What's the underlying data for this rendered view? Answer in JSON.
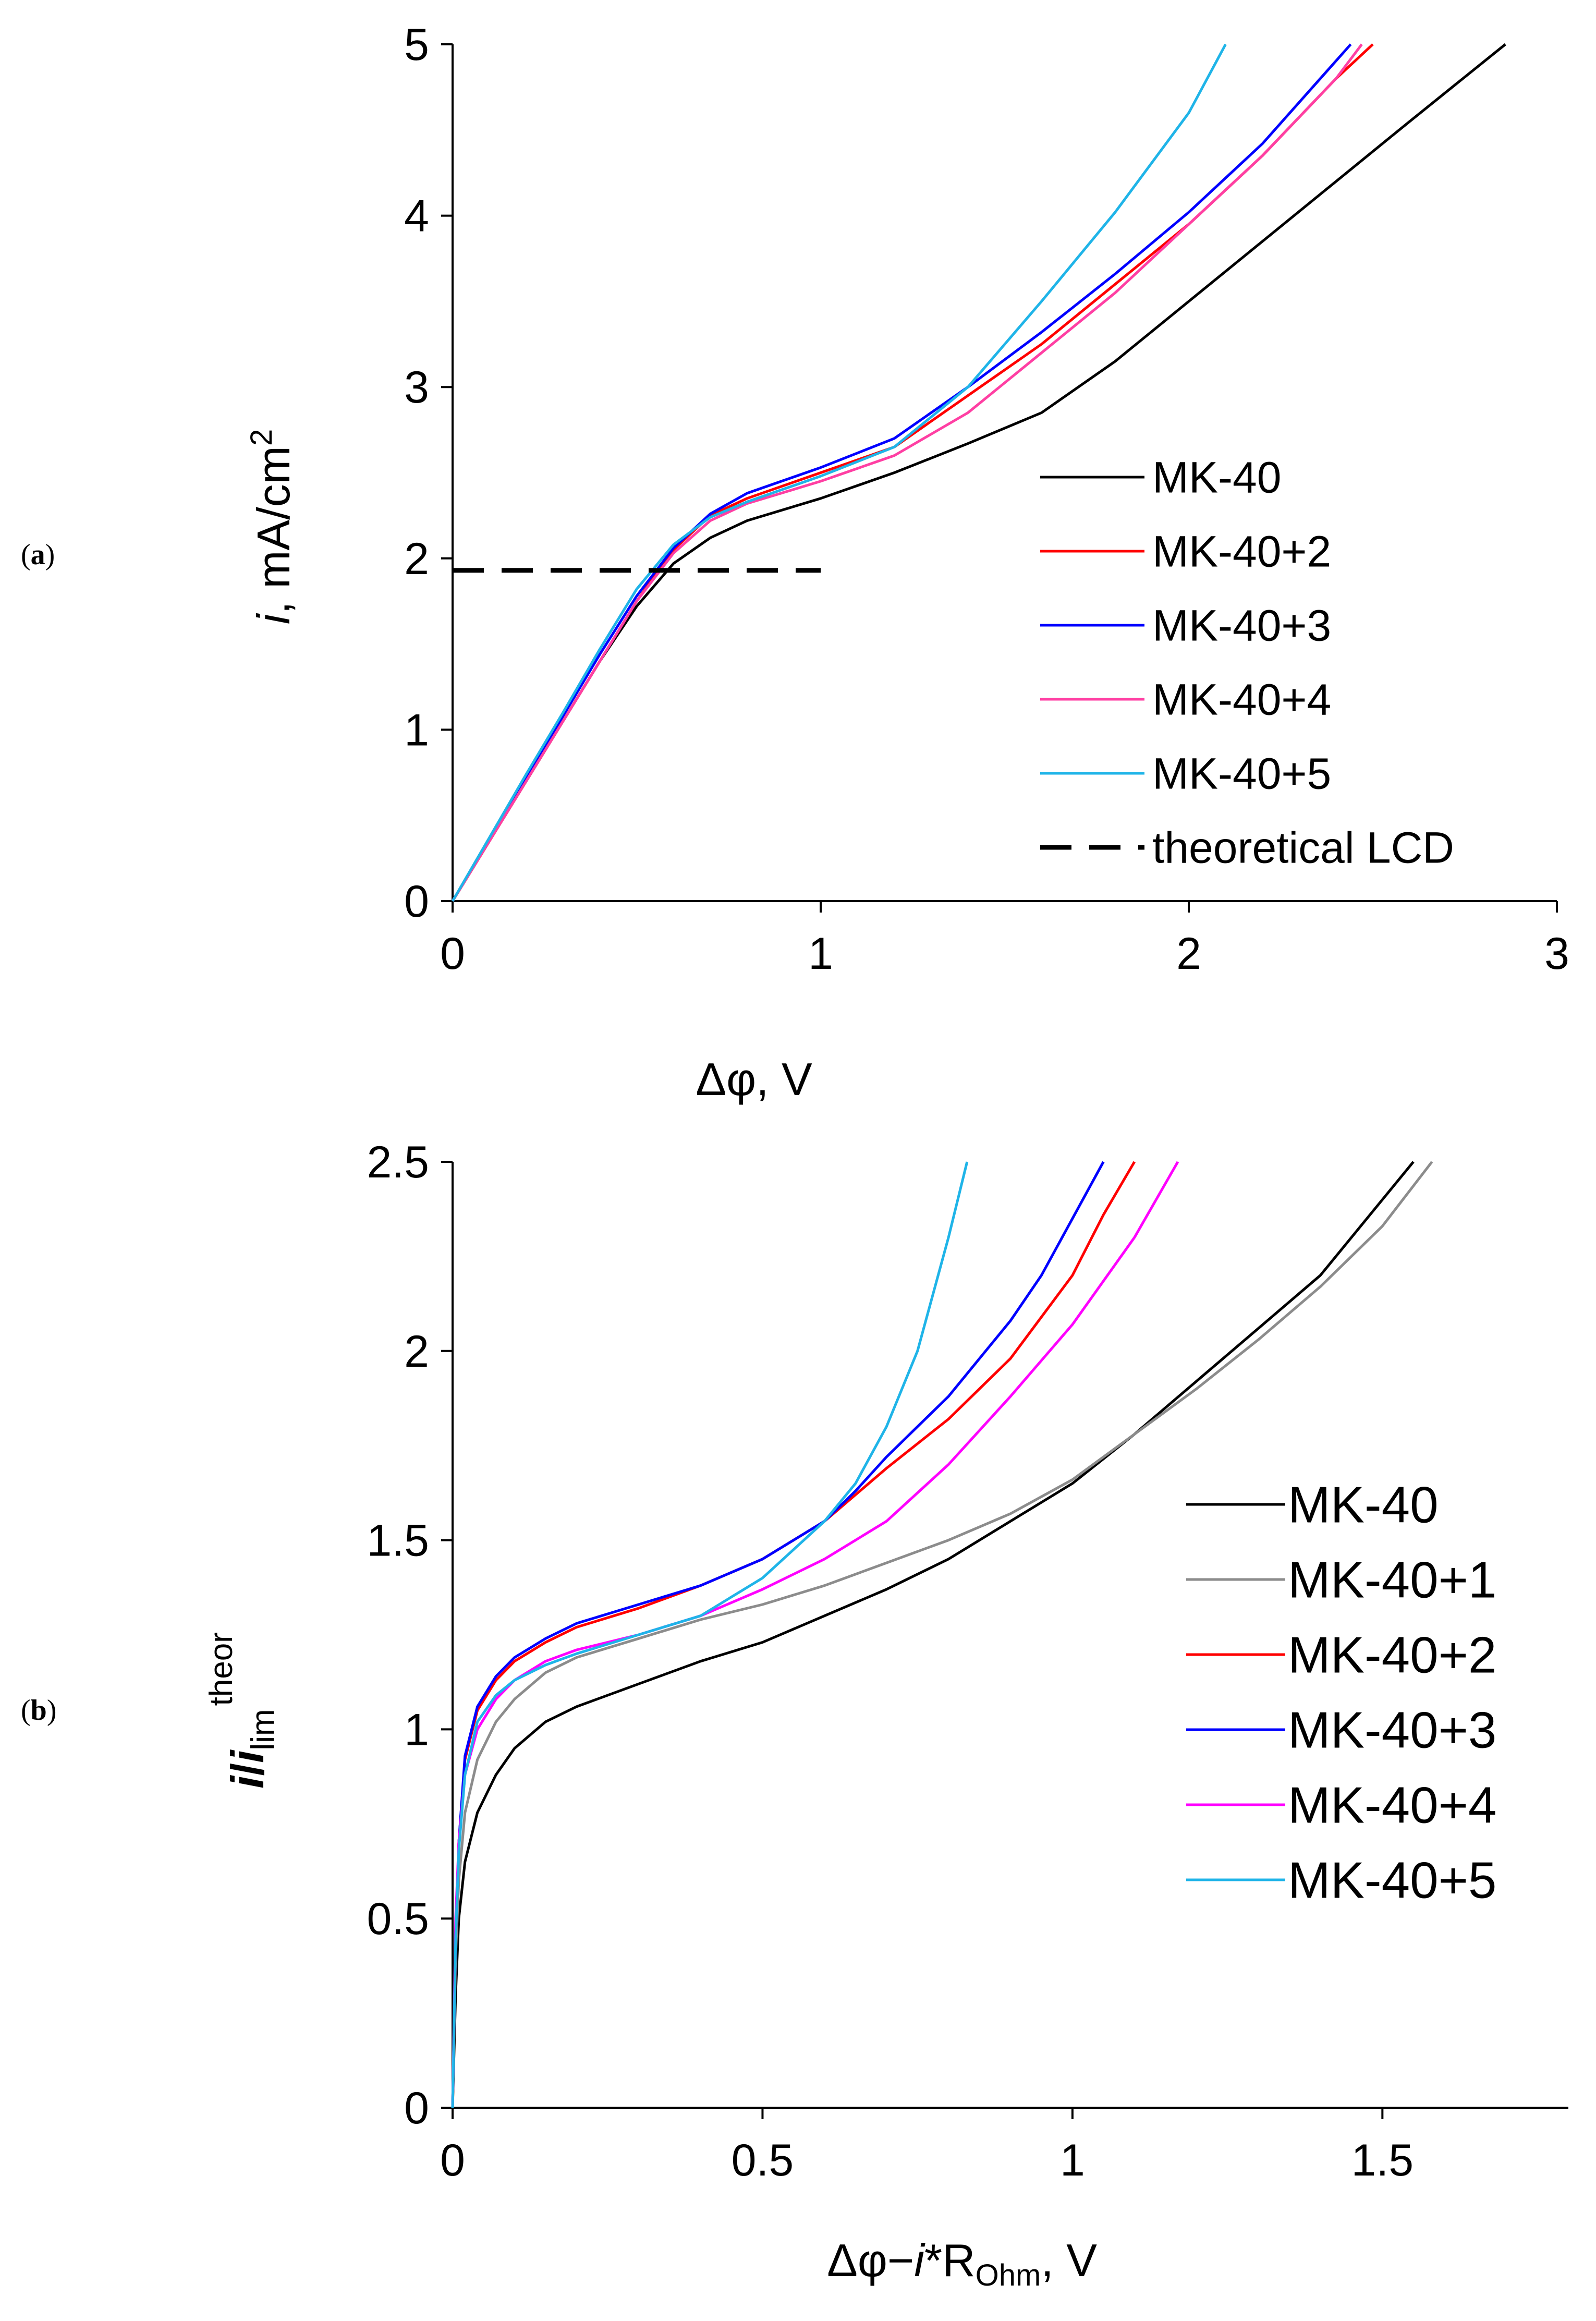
{
  "panel_labels": [
    {
      "open": "(",
      "letter": "a",
      "close": ")"
    },
    {
      "open": "(",
      "letter": "b",
      "close": ")"
    }
  ],
  "chart_data": [
    {
      "type": "line",
      "panel": "a",
      "title": "",
      "xlabel": "Δφ, V",
      "ylabel": {
        "italic": "i",
        "rest": ", mA/cm",
        "sup": "2"
      },
      "xlim": [
        0,
        3
      ],
      "ylim": [
        0,
        5
      ],
      "xticks": [
        0,
        1,
        2,
        3
      ],
      "xtick_labels": [
        "0",
        "1",
        "2",
        "3"
      ],
      "yticks": [
        0,
        1,
        2,
        3,
        4,
        5
      ],
      "ytick_labels": [
        "0",
        "1",
        "2",
        "3",
        "4",
        "5"
      ],
      "grid": false,
      "legend_position": "lower-right",
      "series": [
        {
          "name": "MK-40",
          "color": "#000000",
          "dash": "solid",
          "x": [
            0,
            0.1,
            0.2,
            0.3,
            0.4,
            0.5,
            0.6,
            0.7,
            0.8,
            1.0,
            1.2,
            1.4,
            1.6,
            1.8,
            2.0,
            2.2,
            2.4,
            2.6,
            2.86
          ],
          "y": [
            0,
            0.35,
            0.7,
            1.05,
            1.4,
            1.72,
            1.97,
            2.12,
            2.22,
            2.35,
            2.5,
            2.67,
            2.85,
            3.15,
            3.5,
            3.85,
            4.2,
            4.55,
            5.0
          ]
        },
        {
          "name": "MK-40+2",
          "color": "#ff0000",
          "dash": "solid",
          "x": [
            0,
            0.1,
            0.2,
            0.3,
            0.4,
            0.5,
            0.6,
            0.7,
            0.8,
            1.0,
            1.2,
            1.4,
            1.6,
            1.8,
            2.0,
            2.2,
            2.4,
            2.5
          ],
          "y": [
            0,
            0.35,
            0.7,
            1.05,
            1.4,
            1.75,
            2.05,
            2.25,
            2.35,
            2.5,
            2.65,
            2.95,
            3.25,
            3.6,
            3.95,
            4.35,
            4.8,
            5.0
          ]
        },
        {
          "name": "MK-40+3",
          "color": "#0000ff",
          "dash": "solid",
          "x": [
            0,
            0.1,
            0.2,
            0.3,
            0.4,
            0.5,
            0.6,
            0.7,
            0.8,
            1.0,
            1.2,
            1.4,
            1.6,
            1.8,
            2.0,
            2.2,
            2.44
          ],
          "y": [
            0,
            0.36,
            0.72,
            1.08,
            1.44,
            1.78,
            2.06,
            2.26,
            2.38,
            2.53,
            2.7,
            3.0,
            3.32,
            3.66,
            4.02,
            4.42,
            5.0
          ]
        },
        {
          "name": "MK-40+4",
          "color": "#ff3fa3",
          "dash": "solid",
          "x": [
            0,
            0.1,
            0.2,
            0.3,
            0.4,
            0.5,
            0.6,
            0.7,
            0.8,
            1.0,
            1.2,
            1.4,
            1.6,
            1.8,
            2.0,
            2.2,
            2.4,
            2.47
          ],
          "y": [
            0,
            0.35,
            0.7,
            1.05,
            1.4,
            1.75,
            2.03,
            2.22,
            2.32,
            2.45,
            2.6,
            2.85,
            3.2,
            3.55,
            3.95,
            4.35,
            4.8,
            5.0
          ]
        },
        {
          "name": "MK-40+5",
          "color": "#1fb4e8",
          "dash": "solid",
          "x": [
            0,
            0.1,
            0.2,
            0.3,
            0.4,
            0.5,
            0.6,
            0.7,
            0.8,
            1.0,
            1.2,
            1.4,
            1.6,
            1.8,
            2.0,
            2.1
          ],
          "y": [
            0,
            0.37,
            0.74,
            1.1,
            1.47,
            1.82,
            2.08,
            2.24,
            2.33,
            2.48,
            2.65,
            3.0,
            3.5,
            4.02,
            4.6,
            5.0
          ]
        },
        {
          "name": "theoretical LCD",
          "color": "#000000",
          "dash": "dashed",
          "x": [
            0,
            1.0
          ],
          "y": [
            1.93,
            1.93
          ]
        }
      ]
    },
    {
      "type": "line",
      "panel": "b",
      "title": "",
      "xlabel": {
        "pre": "Δφ−",
        "italic": "i",
        "mid": "*R",
        "sub": "Ohm",
        "post": ",  V"
      },
      "ylabel": {
        "italic1": "i",
        "slash": "/",
        "italic2": "i",
        "sub": "lim",
        "sup": "theor"
      },
      "xlim": [
        0,
        1.8
      ],
      "ylim": [
        0,
        2.5
      ],
      "xticks": [
        0,
        0.5,
        1,
        1.5
      ],
      "xtick_labels": [
        "0",
        "0.5",
        "1",
        "1.5"
      ],
      "yticks": [
        0,
        0.5,
        1,
        1.5,
        2,
        2.5
      ],
      "ytick_labels": [
        "0",
        "0.5",
        "1",
        "1.5",
        "2",
        "2.5"
      ],
      "grid": false,
      "legend_position": "lower-right",
      "series": [
        {
          "name": "MK-40",
          "color": "#000000",
          "dash": "solid",
          "x": [
            0,
            0.005,
            0.01,
            0.02,
            0.04,
            0.07,
            0.1,
            0.15,
            0.2,
            0.3,
            0.4,
            0.5,
            0.6,
            0.7,
            0.8,
            0.9,
            1.0,
            1.1,
            1.2,
            1.3,
            1.4,
            1.5,
            1.55
          ],
          "y": [
            0,
            0.3,
            0.5,
            0.65,
            0.78,
            0.88,
            0.95,
            1.02,
            1.06,
            1.12,
            1.18,
            1.23,
            1.3,
            1.37,
            1.45,
            1.55,
            1.65,
            1.78,
            1.92,
            2.06,
            2.2,
            2.4,
            2.5
          ]
        },
        {
          "name": "MK-40+1",
          "color": "#8c8c8c",
          "dash": "solid",
          "x": [
            0,
            0.005,
            0.01,
            0.02,
            0.04,
            0.07,
            0.1,
            0.15,
            0.2,
            0.3,
            0.4,
            0.5,
            0.6,
            0.7,
            0.8,
            0.9,
            1.0,
            1.1,
            1.2,
            1.3,
            1.4,
            1.5,
            1.58
          ],
          "y": [
            0,
            0.4,
            0.6,
            0.78,
            0.92,
            1.02,
            1.08,
            1.15,
            1.19,
            1.24,
            1.29,
            1.33,
            1.38,
            1.44,
            1.5,
            1.57,
            1.66,
            1.78,
            1.9,
            2.03,
            2.17,
            2.33,
            2.5
          ]
        },
        {
          "name": "MK-40+2",
          "color": "#ff0000",
          "dash": "solid",
          "x": [
            0,
            0.005,
            0.01,
            0.02,
            0.04,
            0.07,
            0.1,
            0.15,
            0.2,
            0.3,
            0.4,
            0.5,
            0.6,
            0.65,
            0.7,
            0.8,
            0.9,
            1.0,
            1.05,
            1.1
          ],
          "y": [
            0,
            0.45,
            0.7,
            0.92,
            1.05,
            1.13,
            1.18,
            1.23,
            1.27,
            1.32,
            1.38,
            1.45,
            1.55,
            1.62,
            1.69,
            1.82,
            1.98,
            2.2,
            2.36,
            2.5
          ]
        },
        {
          "name": "MK-40+3",
          "color": "#0000ff",
          "dash": "solid",
          "x": [
            0,
            0.005,
            0.01,
            0.02,
            0.04,
            0.07,
            0.1,
            0.15,
            0.2,
            0.3,
            0.4,
            0.5,
            0.6,
            0.65,
            0.7,
            0.8,
            0.9,
            0.95,
            1.0,
            1.05
          ],
          "y": [
            0,
            0.45,
            0.7,
            0.93,
            1.06,
            1.14,
            1.19,
            1.24,
            1.28,
            1.33,
            1.38,
            1.45,
            1.55,
            1.63,
            1.72,
            1.88,
            2.08,
            2.2,
            2.35,
            2.5
          ]
        },
        {
          "name": "MK-40+4",
          "color": "#ff00ff",
          "dash": "solid",
          "x": [
            0,
            0.005,
            0.01,
            0.02,
            0.04,
            0.07,
            0.1,
            0.15,
            0.2,
            0.3,
            0.4,
            0.5,
            0.6,
            0.65,
            0.7,
            0.8,
            0.9,
            1.0,
            1.1,
            1.17
          ],
          "y": [
            0,
            0.5,
            0.7,
            0.88,
            1.0,
            1.08,
            1.13,
            1.18,
            1.21,
            1.25,
            1.3,
            1.37,
            1.45,
            1.5,
            1.55,
            1.7,
            1.88,
            2.07,
            2.3,
            2.5
          ]
        },
        {
          "name": "MK-40+5",
          "color": "#1fb4e8",
          "dash": "solid",
          "x": [
            0,
            0.005,
            0.01,
            0.02,
            0.04,
            0.07,
            0.1,
            0.15,
            0.2,
            0.3,
            0.4,
            0.5,
            0.6,
            0.65,
            0.7,
            0.75,
            0.8,
            0.83
          ],
          "y": [
            0,
            0.45,
            0.68,
            0.88,
            1.02,
            1.09,
            1.13,
            1.17,
            1.2,
            1.25,
            1.3,
            1.4,
            1.55,
            1.65,
            1.8,
            2.0,
            2.3,
            2.5
          ]
        }
      ]
    }
  ]
}
